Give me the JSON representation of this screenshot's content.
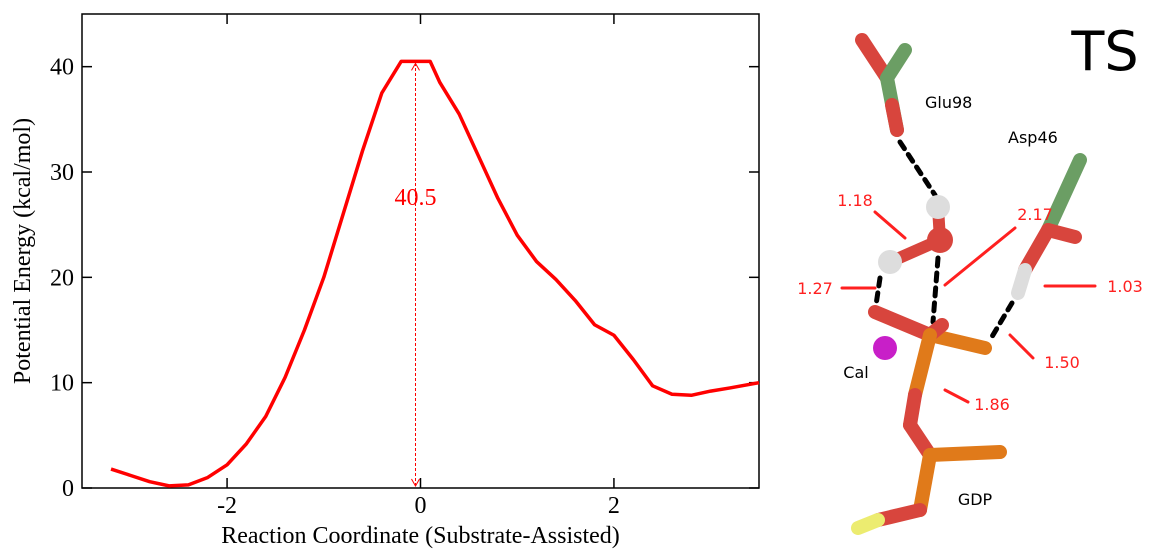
{
  "chart_data": {
    "type": "line",
    "xlabel": "Reaction Coordinate (Substrate-Assisted)",
    "ylabel": "Potential Energy (kcal/mol)",
    "annotation": "40.5",
    "x": [
      -3.2,
      -3.0,
      -2.8,
      -2.6,
      -2.4,
      -2.2,
      -2.0,
      -1.8,
      -1.6,
      -1.4,
      -1.2,
      -1.0,
      -0.8,
      -0.6,
      -0.4,
      -0.2,
      0.1,
      0.2,
      0.4,
      0.6,
      0.8,
      1.0,
      1.2,
      1.4,
      1.6,
      1.8,
      2.0,
      2.2,
      2.4,
      2.6,
      2.8,
      3.0,
      3.2,
      3.5
    ],
    "series": [
      {
        "color": "#ff0000",
        "values": [
          1.8,
          1.2,
          0.6,
          0.2,
          0.3,
          1.0,
          2.2,
          4.2,
          6.8,
          10.5,
          15,
          20,
          26,
          32,
          37.5,
          40.5,
          40.5,
          38.5,
          35.5,
          31.5,
          27.5,
          24,
          21.5,
          19.8,
          17.8,
          15.5,
          14.5,
          12.2,
          9.7,
          8.9,
          8.8,
          9.2,
          9.5,
          10
        ]
      }
    ],
    "xlim": [
      -3.5,
      3.5
    ],
    "xticks": [
      -2,
      0,
      2
    ],
    "ylim": [
      0,
      45
    ],
    "yticks": [
      0,
      10,
      20,
      30,
      40
    ]
  },
  "diagram": {
    "title": "TS",
    "labels": [
      "Glu98",
      "Asp46",
      "1.18",
      "2.17",
      "1.27",
      "1.03",
      "1.50",
      "Cal",
      "1.86",
      "GDP"
    ]
  }
}
